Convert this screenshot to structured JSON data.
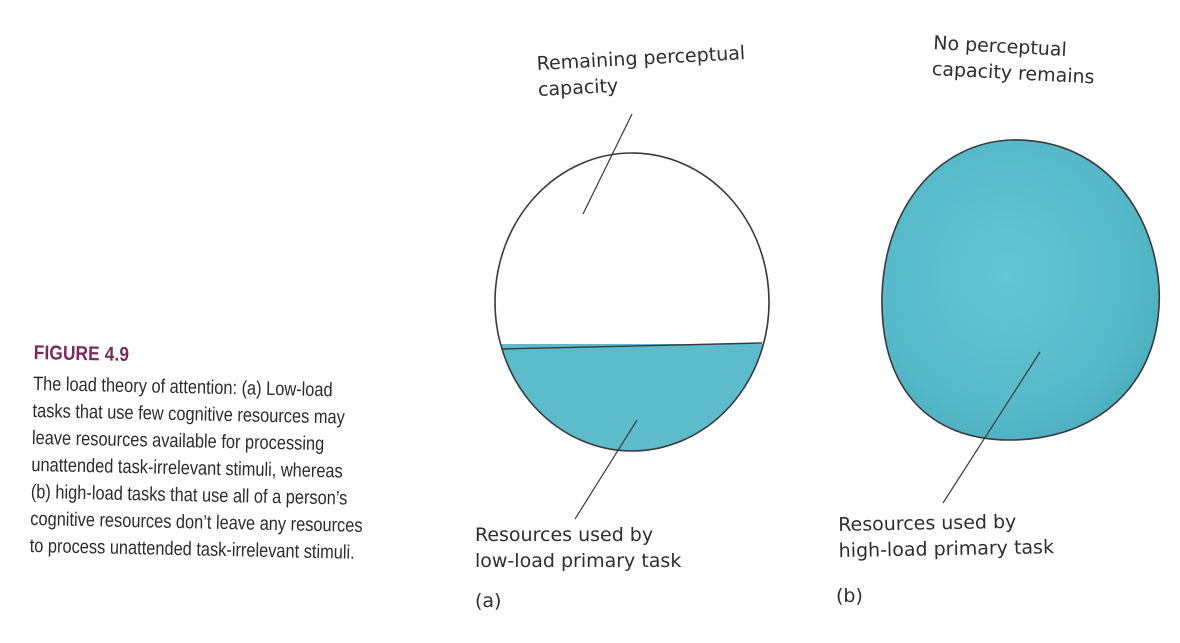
{
  "figure": {
    "label": "FIGURE 4.9",
    "caption_lines": [
      "The load theory of attention: (a) Low-load",
      "tasks that use few cognitive resources may",
      "leave resources available for processing",
      "unattended task-irrelevant stimuli, whereas",
      "(b) high-load tasks that use all of a person’s",
      "cognitive resources don’t leave any resources",
      "to process unattended task-irrelevant stimuli."
    ]
  },
  "panel_a": {
    "top_label_lines": [
      "Remaining perceptual",
      "capacity"
    ],
    "bottom_label_lines": [
      "Resources used by",
      "low-load primary task"
    ],
    "panel_letter": "(a)"
  },
  "panel_b": {
    "top_label_lines": [
      "No perceptual",
      "capacity remains"
    ],
    "bottom_label_lines": [
      "Resources used by",
      "high-load primary task"
    ],
    "panel_letter": "(b)"
  },
  "colors": {
    "fill": "#5cbccb",
    "outline": "#3a3a3a",
    "label_accent": "#7a2a5a"
  }
}
